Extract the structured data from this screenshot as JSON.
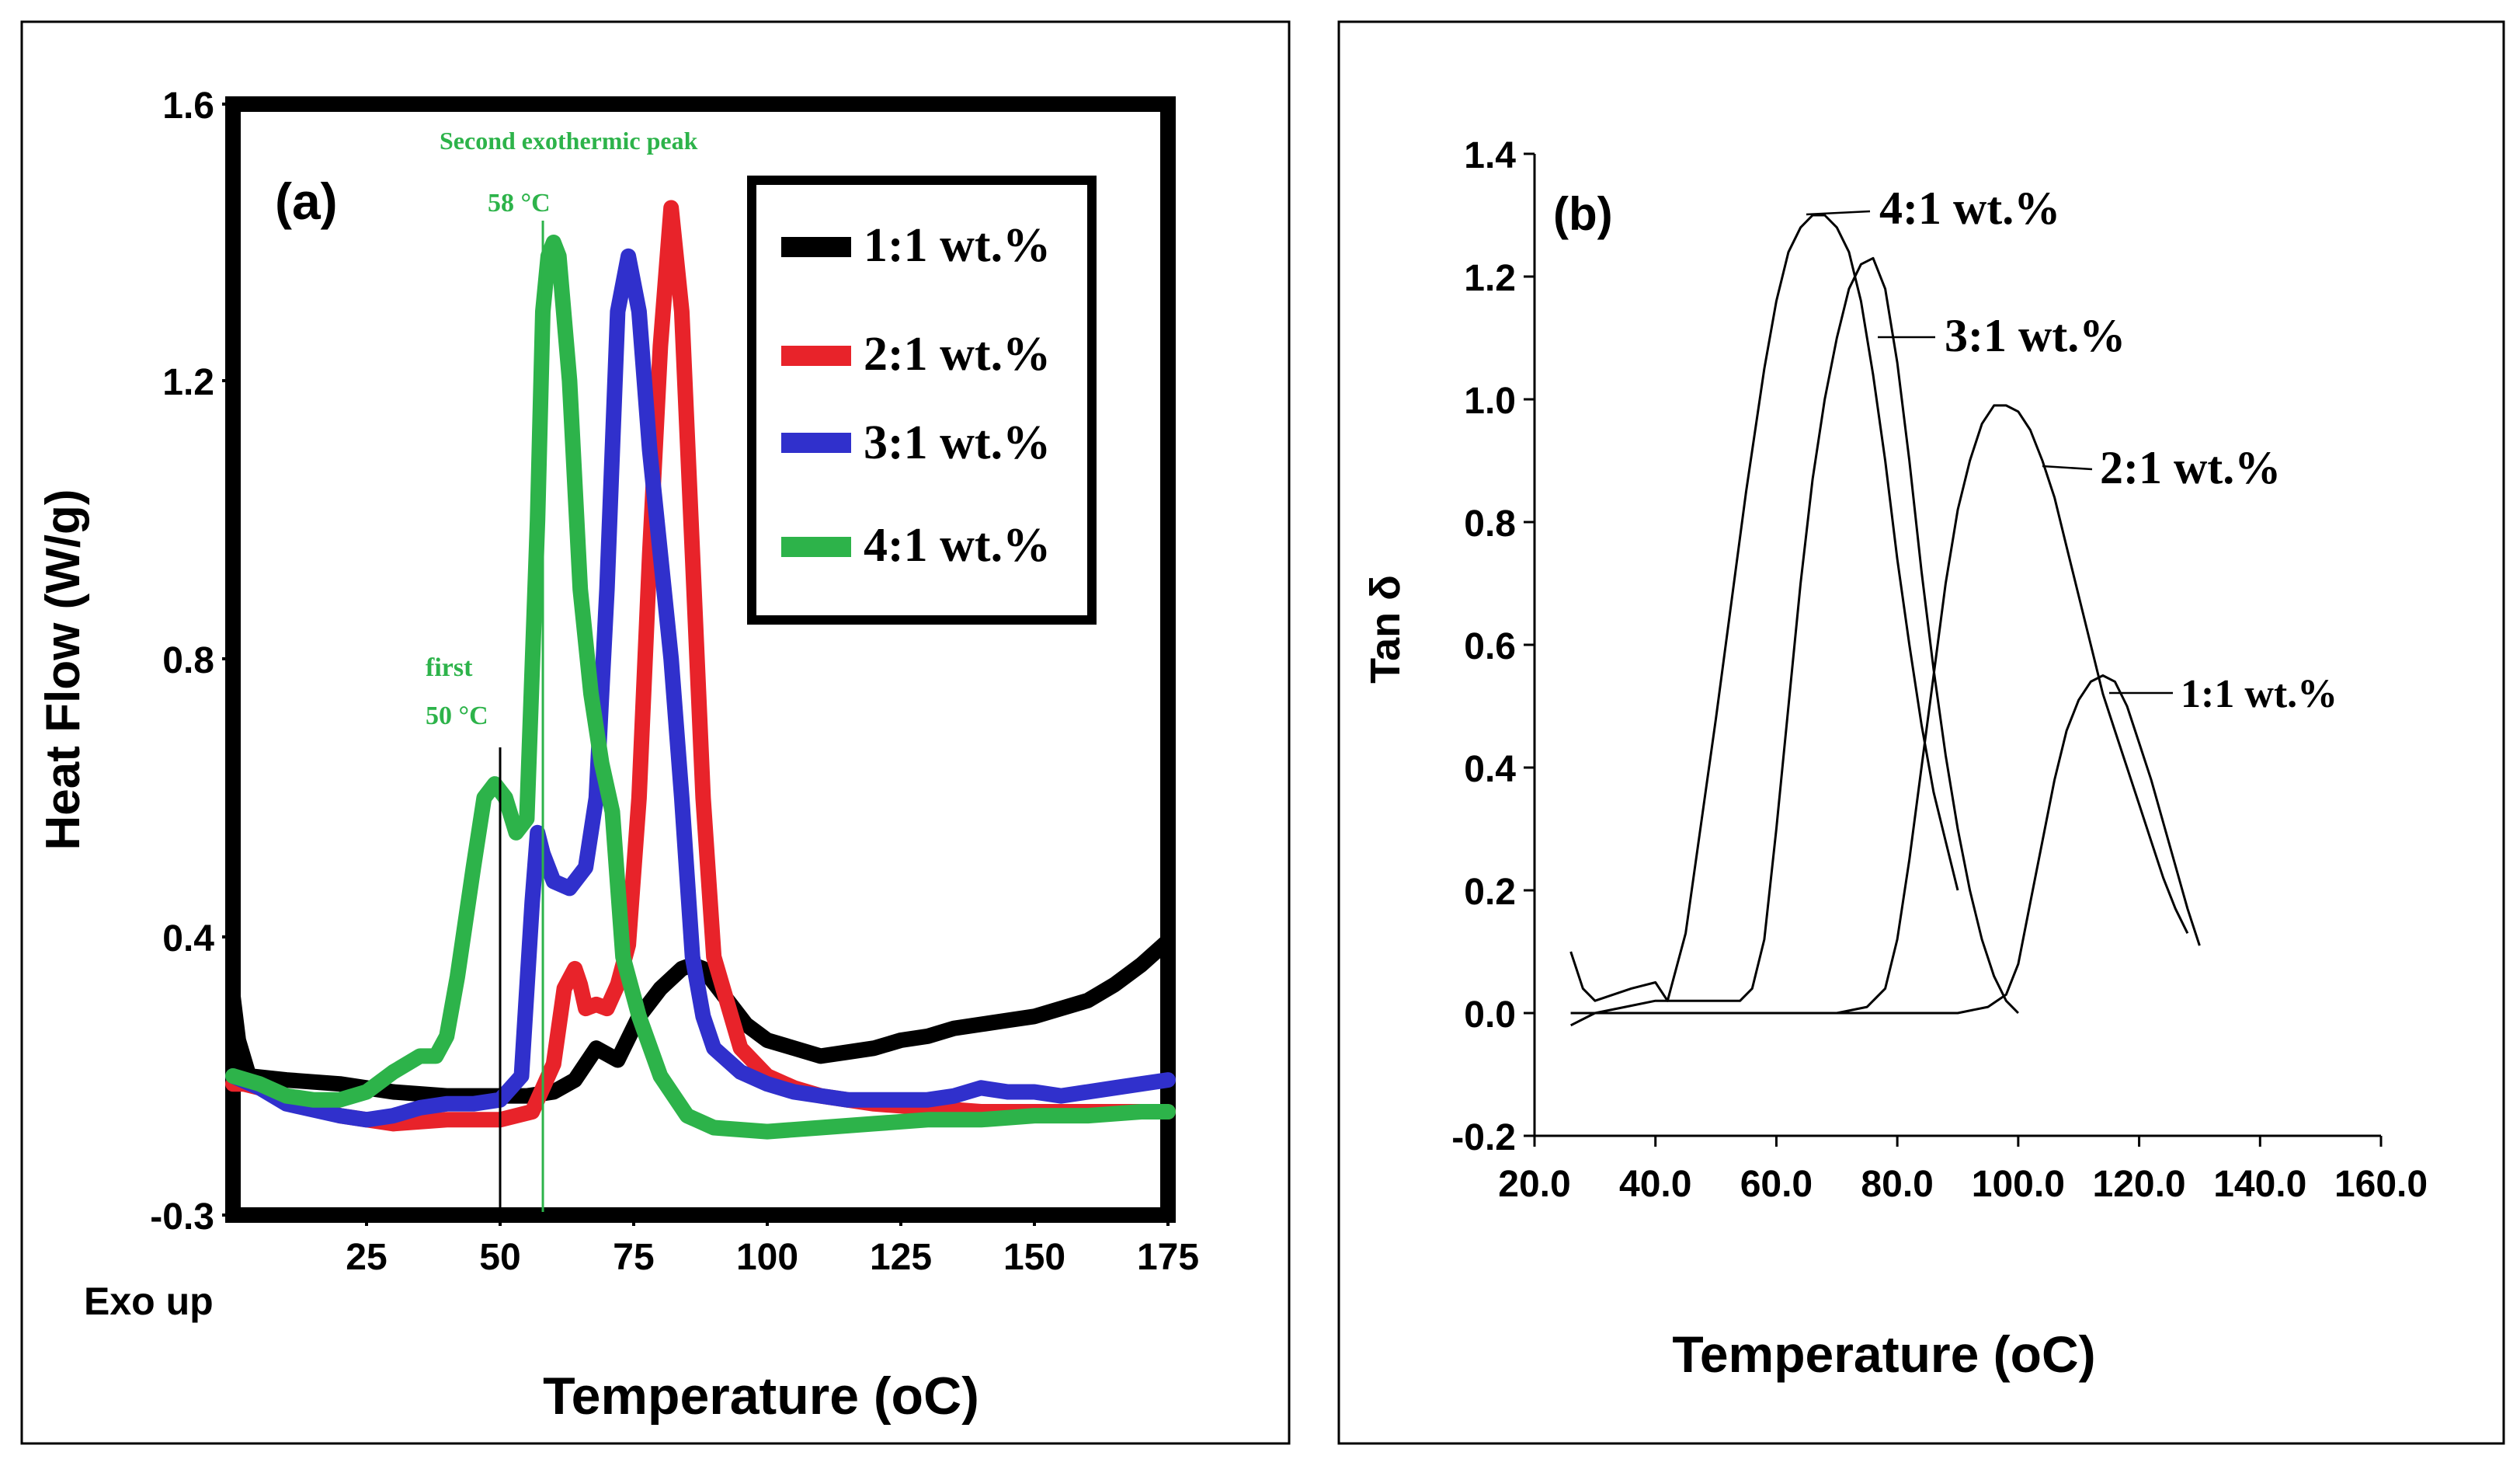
{
  "chart_data": [
    {
      "type": "line",
      "panel_label": "(a)",
      "xlabel": "Temperature (oC)",
      "ylabel": "Heat Flow (W/g)",
      "xlim": [
        0,
        175
      ],
      "ylim": [
        -0.3,
        1.6
      ],
      "x_ticks": [
        "25",
        "50",
        "75",
        "100",
        "125",
        "150",
        "175"
      ],
      "y_ticks": [
        "-0.3",
        "0.4",
        "0.8",
        "1.2",
        "1.6"
      ],
      "exo_label": "Exo up",
      "legend": [
        "1:1 wt.%",
        "2:1 wt.%",
        "3:1 wt.%",
        "4:1 wt.%"
      ],
      "annotations": {
        "second_peak_title": "Second exothermic peak",
        "second_peak_temp": "58 °C",
        "first_peak_title": "first",
        "first_peak_temp": "50 °C"
      },
      "series": [
        {
          "name": "1:1 wt.%",
          "color": "#000000",
          "x": [
            0,
            1,
            3,
            10,
            20,
            30,
            40,
            50,
            55,
            60,
            64,
            68,
            72,
            76,
            80,
            84,
            86,
            88,
            92,
            96,
            100,
            105,
            110,
            115,
            120,
            125,
            130,
            135,
            140,
            145,
            150,
            155,
            160,
            165,
            170,
            175
          ],
          "y": [
            0.25,
            0.14,
            0.05,
            0.04,
            0.03,
            0.01,
            0.0,
            0.0,
            0.0,
            0.01,
            0.04,
            0.12,
            0.09,
            0.2,
            0.27,
            0.32,
            0.33,
            0.32,
            0.25,
            0.18,
            0.14,
            0.12,
            0.1,
            0.11,
            0.12,
            0.14,
            0.15,
            0.17,
            0.18,
            0.19,
            0.2,
            0.22,
            0.24,
            0.28,
            0.33,
            0.39
          ]
        },
        {
          "name": "2:1 wt.%",
          "color": "#e8232a",
          "x": [
            0,
            2,
            5,
            10,
            20,
            30,
            40,
            50,
            56,
            60,
            62,
            64,
            65,
            66,
            68,
            70,
            72,
            74,
            76,
            78,
            80,
            82,
            84,
            86,
            88,
            90,
            95,
            100,
            105,
            110,
            120,
            130,
            140,
            150,
            160,
            170,
            175
          ],
          "y": [
            0.03,
            0.03,
            0.02,
            0.0,
            -0.05,
            -0.07,
            -0.06,
            -0.06,
            -0.04,
            0.08,
            0.27,
            0.32,
            0.28,
            0.22,
            0.23,
            0.22,
            0.28,
            0.38,
            0.6,
            0.95,
            1.25,
            1.45,
            1.3,
            0.95,
            0.6,
            0.35,
            0.12,
            0.05,
            0.02,
            0.0,
            -0.02,
            -0.03,
            -0.04,
            -0.04,
            -0.04,
            -0.04,
            -0.04
          ]
        },
        {
          "name": "3:1 wt.%",
          "color": "#3030cc",
          "x": [
            0,
            5,
            10,
            20,
            25,
            30,
            35,
            40,
            45,
            50,
            54,
            56,
            57,
            58,
            60,
            63,
            66,
            68,
            70,
            72,
            74,
            76,
            78,
            80,
            82,
            84,
            86,
            88,
            90,
            95,
            100,
            105,
            110,
            115,
            120,
            125,
            130,
            135,
            140,
            145,
            150,
            155,
            160,
            165,
            170,
            175
          ],
          "y": [
            0.05,
            0.02,
            -0.02,
            -0.05,
            -0.06,
            -0.05,
            -0.03,
            -0.02,
            -0.02,
            -0.01,
            0.05,
            0.45,
            0.55,
            0.52,
            0.48,
            0.47,
            0.5,
            0.6,
            0.9,
            1.3,
            1.38,
            1.3,
            1.1,
            0.95,
            0.8,
            0.6,
            0.35,
            0.2,
            0.12,
            0.06,
            0.03,
            0.01,
            0.0,
            -0.01,
            -0.01,
            -0.01,
            -0.01,
            0.0,
            0.02,
            0.01,
            0.01,
            0.0,
            0.01,
            0.02,
            0.03,
            0.04
          ]
        },
        {
          "name": "4:1 wt.%",
          "color": "#2db34a",
          "x": [
            0,
            5,
            10,
            15,
            20,
            25,
            30,
            35,
            38,
            40,
            42,
            45,
            47,
            49,
            51,
            53,
            55,
            57,
            58,
            59,
            60,
            61,
            63,
            65,
            67,
            69,
            71,
            73,
            76,
            80,
            85,
            90,
            100,
            110,
            120,
            130,
            140,
            150,
            160,
            170,
            175
          ],
          "y": [
            0.05,
            0.03,
            0.0,
            -0.01,
            -0.01,
            0.01,
            0.06,
            0.1,
            0.1,
            0.15,
            0.3,
            0.5,
            0.6,
            0.62,
            0.6,
            0.55,
            0.57,
            1.0,
            1.3,
            1.38,
            1.4,
            1.38,
            1.2,
            0.9,
            0.75,
            0.65,
            0.58,
            0.35,
            0.2,
            0.05,
            -0.05,
            -0.08,
            -0.09,
            -0.08,
            -0.07,
            -0.06,
            -0.06,
            -0.05,
            -0.05,
            -0.04,
            -0.04
          ]
        }
      ]
    },
    {
      "type": "line",
      "panel_label": "(b)",
      "xlabel": "Temperature (oC)",
      "ylabel": "Tan δ",
      "xlim": [
        20,
        160
      ],
      "ylim": [
        -0.2,
        1.4
      ],
      "x_ticks": [
        "20.0",
        "40.0",
        "60.0",
        "80.0",
        "100.0",
        "120.0",
        "140.0",
        "160.0"
      ],
      "y_ticks": [
        "-0.2",
        "0.0",
        "0.2",
        "0.4",
        "0.6",
        "0.8",
        "1.0",
        "1.2",
        "1.4"
      ],
      "series": [
        {
          "name": "4:1 wt.%",
          "color": "#000000",
          "x": [
            26,
            28,
            30,
            33,
            36,
            40,
            42,
            45,
            50,
            55,
            58,
            60,
            62,
            64,
            66,
            68,
            70,
            72,
            74,
            76,
            78,
            80,
            82,
            84,
            86,
            88,
            90
          ],
          "y": [
            0.1,
            0.04,
            0.02,
            0.03,
            0.04,
            0.05,
            0.02,
            0.13,
            0.48,
            0.85,
            1.05,
            1.16,
            1.24,
            1.28,
            1.3,
            1.3,
            1.28,
            1.24,
            1.16,
            1.04,
            0.9,
            0.74,
            0.6,
            0.47,
            0.36,
            0.28,
            0.2
          ]
        },
        {
          "name": "3:1 wt.%",
          "color": "#000000",
          "x": [
            26,
            30,
            35,
            40,
            45,
            50,
            54,
            56,
            58,
            60,
            62,
            64,
            66,
            68,
            70,
            72,
            74,
            76,
            78,
            80,
            82,
            84,
            86,
            88,
            90,
            92,
            94,
            96,
            98,
            100
          ],
          "y": [
            -0.02,
            0.0,
            0.01,
            0.02,
            0.02,
            0.02,
            0.02,
            0.04,
            0.12,
            0.3,
            0.5,
            0.7,
            0.87,
            1.0,
            1.1,
            1.18,
            1.22,
            1.23,
            1.18,
            1.06,
            0.9,
            0.72,
            0.56,
            0.42,
            0.3,
            0.2,
            0.12,
            0.06,
            0.02,
            0.0
          ]
        },
        {
          "name": "2:1 wt.%",
          "color": "#000000",
          "x": [
            26,
            30,
            40,
            50,
            60,
            70,
            75,
            78,
            80,
            82,
            84,
            86,
            88,
            90,
            92,
            94,
            96,
            98,
            100,
            102,
            104,
            106,
            108,
            110,
            112,
            114,
            116,
            118,
            120,
            122,
            124,
            126,
            128
          ],
          "y": [
            0.0,
            0.0,
            0.0,
            0.0,
            0.0,
            0.0,
            0.01,
            0.04,
            0.12,
            0.25,
            0.4,
            0.55,
            0.7,
            0.82,
            0.9,
            0.96,
            0.99,
            0.99,
            0.98,
            0.95,
            0.9,
            0.84,
            0.76,
            0.68,
            0.6,
            0.52,
            0.46,
            0.4,
            0.34,
            0.28,
            0.22,
            0.17,
            0.13
          ]
        },
        {
          "name": "1:1 wt.%",
          "color": "#000000",
          "x": [
            26,
            40,
            60,
            80,
            90,
            95,
            98,
            100,
            102,
            104,
            106,
            108,
            110,
            112,
            114,
            116,
            118,
            120,
            122,
            124,
            126,
            128,
            130
          ],
          "y": [
            0.0,
            0.0,
            0.0,
            0.0,
            0.0,
            0.01,
            0.03,
            0.08,
            0.18,
            0.28,
            0.38,
            0.46,
            0.51,
            0.54,
            0.55,
            0.54,
            0.5,
            0.44,
            0.38,
            0.31,
            0.24,
            0.17,
            0.11
          ]
        }
      ]
    }
  ]
}
